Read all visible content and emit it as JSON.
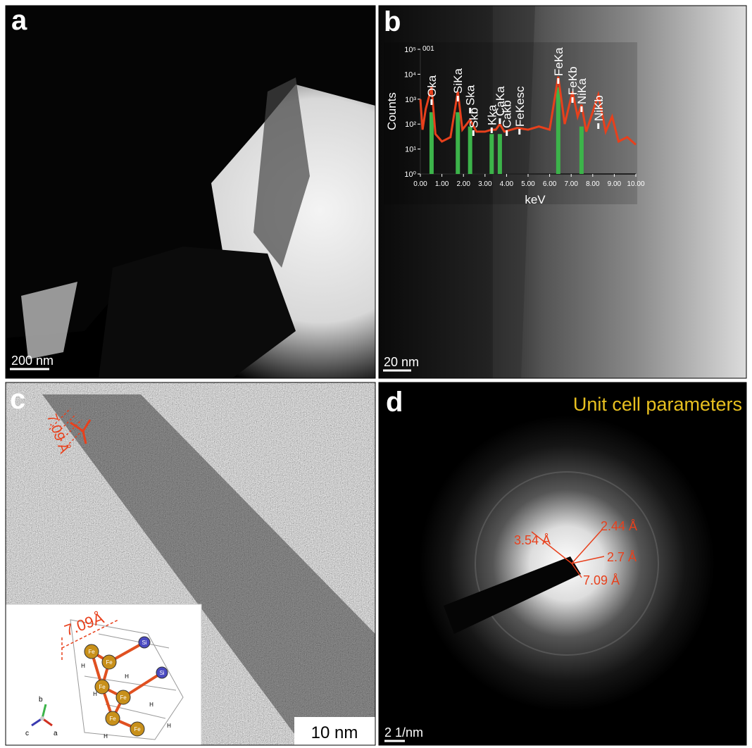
{
  "panels": [
    {
      "label": "a",
      "scale_bar": "200 nm"
    },
    {
      "label": "b",
      "scale_bar": "20 nm",
      "spectrum": {
        "x_label": "keV",
        "y_label": "Counts",
        "top_note": "001",
        "log_scale": true,
        "xlim": [
          0,
          10
        ],
        "ylim": [
          1,
          100000
        ],
        "xticks": [
          {
            "value": 0,
            "label": "0.00"
          },
          {
            "value": 1,
            "label": "1.00"
          },
          {
            "value": 2,
            "label": "2.00"
          },
          {
            "value": 3,
            "label": "3.00"
          },
          {
            "value": 4,
            "label": "4.00"
          },
          {
            "value": 5,
            "label": "5.00"
          },
          {
            "value": 6,
            "label": "6.00"
          },
          {
            "value": 7,
            "label": "7.00"
          },
          {
            "value": 8,
            "label": "8.00"
          },
          {
            "value": 9,
            "label": "9.00"
          },
          {
            "value": 10,
            "label": "10.00"
          }
        ],
        "yticks": [
          {
            "value": 1,
            "label": "10⁰"
          },
          {
            "value": 10,
            "label": "10¹"
          },
          {
            "value": 100,
            "label": "10²"
          },
          {
            "value": 1000,
            "label": "10³"
          },
          {
            "value": 10000,
            "label": "10⁴"
          },
          {
            "value": 100000,
            "label": "10⁵"
          }
        ],
        "line_color": "#e8401c",
        "bar_color": "#3cb44a",
        "energy": [
          0,
          0.1,
          0.25,
          0.52,
          0.7,
          1.0,
          1.4,
          1.74,
          1.95,
          2.31,
          2.6,
          3.0,
          3.31,
          3.5,
          3.69,
          3.9,
          4.5,
          5.0,
          5.5,
          6.0,
          6.4,
          6.7,
          7.06,
          7.3,
          7.48,
          7.7,
          8.26,
          8.6,
          8.9,
          9.2,
          9.6,
          10.0
        ],
        "counts": [
          1000,
          60,
          400,
          3000,
          40,
          20,
          30,
          2000,
          60,
          150,
          50,
          50,
          60,
          60,
          100,
          50,
          70,
          60,
          80,
          60,
          8000,
          100,
          2000,
          200,
          600,
          50,
          1500,
          50,
          200,
          20,
          30,
          15
        ],
        "peaks": [
          {
            "name": "Oka",
            "energy": 0.52,
            "counts": 300
          },
          {
            "name": "SiKa",
            "energy": 1.74,
            "counts": 300
          },
          {
            "name": "Ska",
            "energy": 2.31,
            "counts": 80
          },
          {
            "name": "Skb",
            "energy": 2.46
          },
          {
            "name": "Kka",
            "energy": 3.31,
            "counts": 40
          },
          {
            "name": "CaKa",
            "energy": 3.69,
            "counts": 40
          },
          {
            "name": "Cakb",
            "energy": 4.01
          },
          {
            "name": "FeKesc",
            "energy": 4.6
          },
          {
            "name": "FeKa",
            "energy": 6.4,
            "counts": 3000
          },
          {
            "name": "FeKb",
            "energy": 7.06
          },
          {
            "name": "NiKa",
            "energy": 7.48,
            "counts": 80
          },
          {
            "name": "NiKb",
            "energy": 8.26
          }
        ]
      }
    },
    {
      "label": "c",
      "spacing": "7.09 Å",
      "scale_bar": "10 nm",
      "inset": {
        "spacing": "7.09Å",
        "axes": [
          "b",
          "c",
          "a"
        ],
        "atoms": [
          "Fe",
          "Fe",
          "Fe",
          "Fe",
          "Fe",
          "Fe",
          "Si",
          "Si",
          "H",
          "H",
          "H",
          "H",
          "H",
          "H"
        ]
      }
    },
    {
      "label": "d",
      "title": "Unit cell parameters",
      "scale_bar": "2 1/nm",
      "rings": [
        "3.54 Å",
        "2.44 Å",
        "2.7 Å",
        "7.09 Å"
      ]
    }
  ]
}
